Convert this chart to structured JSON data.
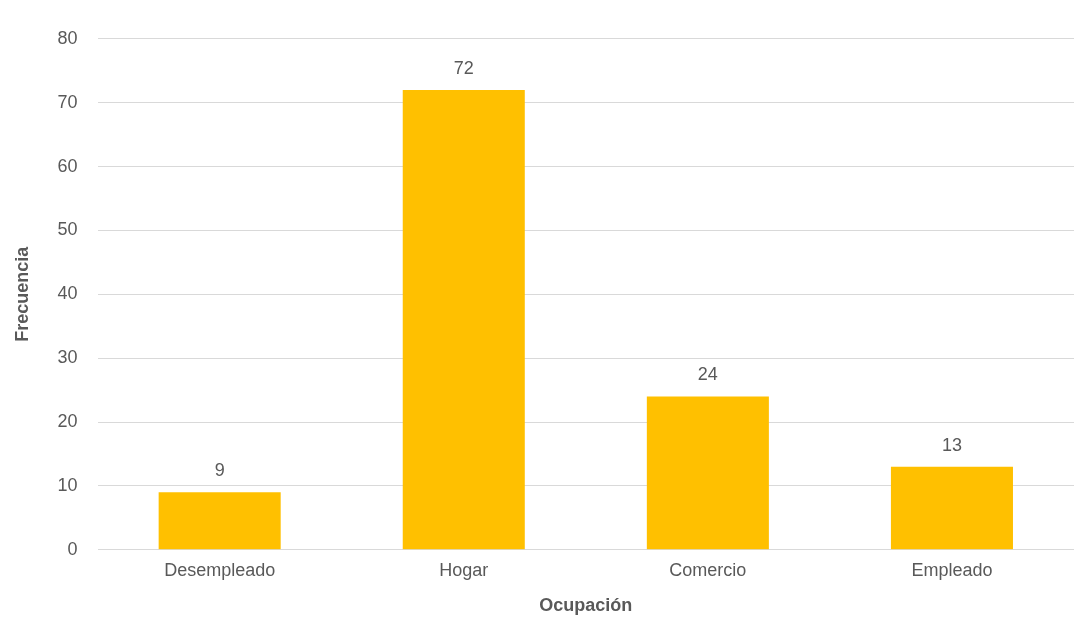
{
  "chart_data": {
    "type": "bar",
    "xlabel": "Ocupación",
    "ylabel": "Frecuencia",
    "categories": [
      "Desempleado",
      "Hogar",
      "Comercio",
      "Empleado"
    ],
    "values": [
      9,
      72,
      24,
      13
    ],
    "color": "#ffc000",
    "ylim": [
      0,
      80
    ],
    "yticks": [
      0,
      10,
      20,
      30,
      40,
      50,
      60,
      70,
      80
    ],
    "grid": "y",
    "data_labels": true,
    "legend": false
  }
}
